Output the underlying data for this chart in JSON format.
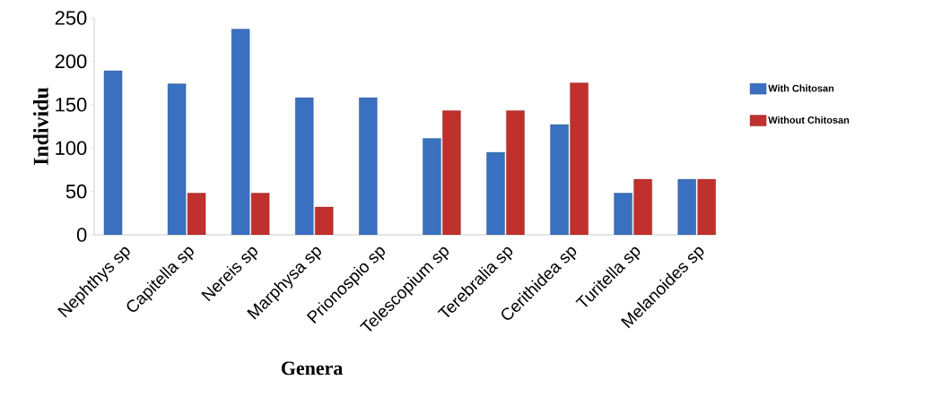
{
  "chart_data": {
    "type": "bar",
    "xlabel": "Genera",
    "ylabel": "Individu",
    "categories": [
      "Nephthys sp",
      "Capitella sp",
      "Nereis sp",
      "Marphysa sp",
      "Prionospio sp",
      "Telescopium sp",
      "Terebralia sp",
      "Cerithidea sp",
      "Turitella sp",
      "Melanoides sp"
    ],
    "series": [
      {
        "name": "With Chitosan",
        "color": "#3a70c0",
        "values": [
          189,
          174,
          237,
          158,
          158,
          111,
          95,
          127,
          48,
          64
        ]
      },
      {
        "name": "Without Chitosan",
        "color": "#c0302c",
        "values": [
          null,
          48,
          48,
          32,
          null,
          143,
          143,
          175,
          64,
          64
        ]
      }
    ],
    "ylim": [
      0,
      250
    ],
    "yticks": [
      0,
      50,
      100,
      150,
      200,
      250
    ],
    "grid": false,
    "legend": "right"
  }
}
